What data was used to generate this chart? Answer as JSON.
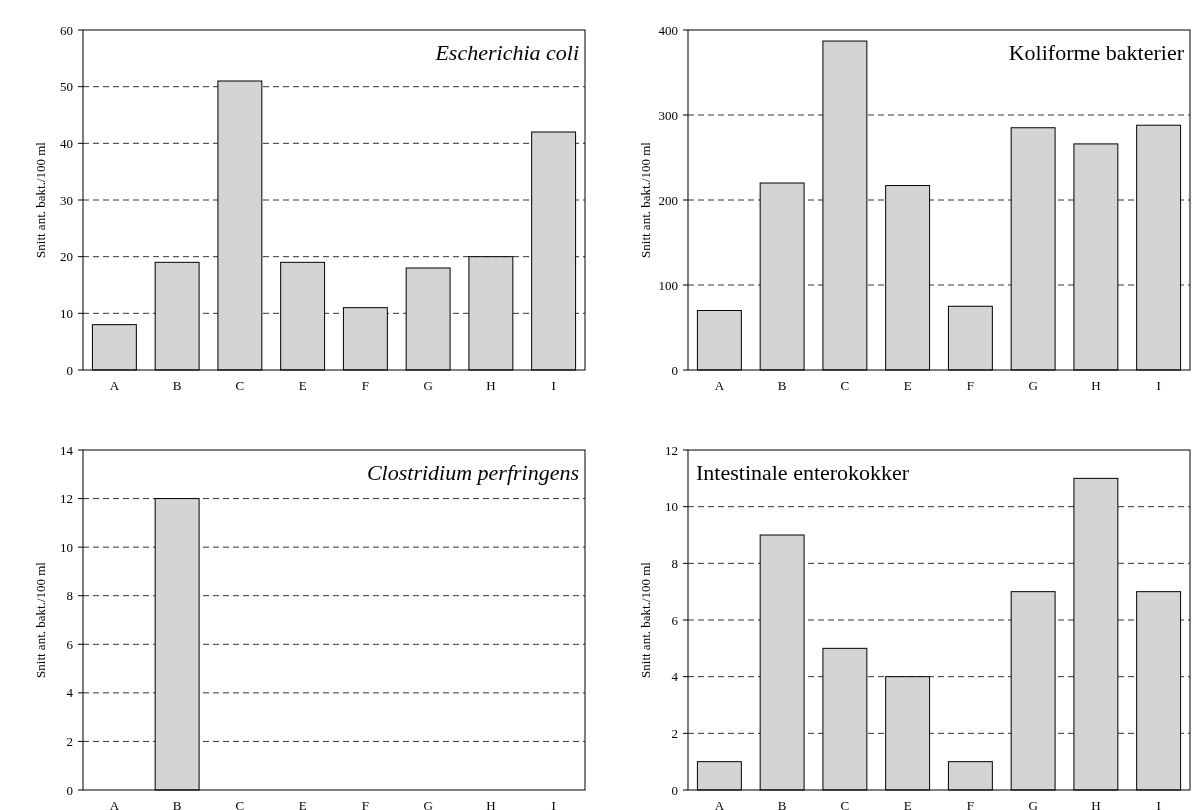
{
  "chart_data": [
    {
      "type": "bar",
      "title": "Escherichia coli",
      "ylabel": "Snitt ant. bakt./100 ml",
      "categories": [
        "A",
        "B",
        "C",
        "E",
        "F",
        "G",
        "H",
        "I"
      ],
      "values": [
        8,
        19,
        51,
        19,
        11,
        18,
        20,
        42
      ],
      "color": "#d4d4d4",
      "ylim": [
        0,
        60
      ],
      "yticks": [
        0,
        10,
        20,
        30,
        40,
        50,
        60
      ],
      "grid": "y"
    },
    {
      "type": "bar",
      "title": "Koliforme bakterier",
      "ylabel": "Snitt ant. bakt./100 ml",
      "categories": [
        "A",
        "B",
        "C",
        "E",
        "F",
        "G",
        "H",
        "I"
      ],
      "values": [
        70,
        220,
        387,
        217,
        75,
        285,
        266,
        288
      ],
      "color": "#d4d4d4",
      "ylim": [
        0,
        400
      ],
      "yticks": [
        0,
        100,
        200,
        300,
        400
      ],
      "grid": "y"
    },
    {
      "type": "bar",
      "title": "Clostridium perfringens",
      "ylabel": "Snitt ant. bakt./100 ml",
      "categories": [
        "A",
        "B",
        "C",
        "E",
        "F",
        "G",
        "H",
        "I"
      ],
      "values": [
        0,
        12,
        0,
        0,
        0,
        0,
        0,
        0
      ],
      "color": "#d4d4d4",
      "ylim": [
        0,
        14
      ],
      "yticks": [
        0,
        2,
        4,
        6,
        8,
        10,
        12,
        14
      ],
      "grid": "y"
    },
    {
      "type": "bar",
      "title": "Intestinale enterokokker",
      "ylabel": "Snitt ant. bakt./100 ml",
      "categories": [
        "A",
        "B",
        "C",
        "E",
        "F",
        "G",
        "H",
        "I"
      ],
      "values": [
        1,
        9,
        5,
        4,
        1,
        7,
        11,
        7
      ],
      "color": "#d4d4d4",
      "ylim": [
        0,
        12
      ],
      "yticks": [
        0,
        2,
        4,
        6,
        8,
        10,
        12
      ],
      "grid": "y"
    }
  ]
}
